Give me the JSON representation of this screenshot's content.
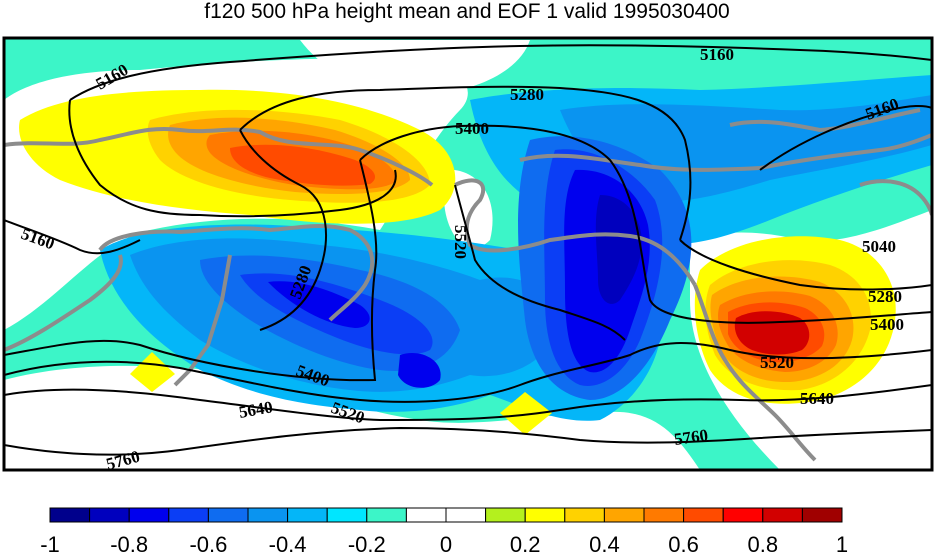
{
  "title": "f120 500 hPa height mean and EOF 1 valid 1995030400",
  "contour_labels": [
    "5160",
    "5160",
    "5280",
    "5400",
    "5160",
    "5160",
    "5280",
    "5520",
    "5040",
    "5280",
    "5400",
    "5520",
    "5640",
    "5400",
    "5640",
    "5520",
    "5760",
    "5760"
  ],
  "colorbar": {
    "colors": [
      "#00008c",
      "#0000be",
      "#0000ee",
      "#0b3ef5",
      "#0f6cf0",
      "#0a94f0",
      "#04b6f8",
      "#00e6ff",
      "#3cf5c8",
      "#ffffff",
      "#ffffff",
      "#b4f01e",
      "#ffff00",
      "#ffd200",
      "#ffa500",
      "#ff7a00",
      "#ff4b00",
      "#ff0000",
      "#d20000",
      "#a00000"
    ],
    "tick_labels": [
      "-1",
      "-0.8",
      "-0.6",
      "-0.4",
      "-0.2",
      "0",
      "0.2",
      "0.4",
      "0.6",
      "0.8",
      "1"
    ]
  },
  "colors": {
    "coastline": "#8c8c8c",
    "contour": "#000000",
    "frame": "#000000"
  }
}
